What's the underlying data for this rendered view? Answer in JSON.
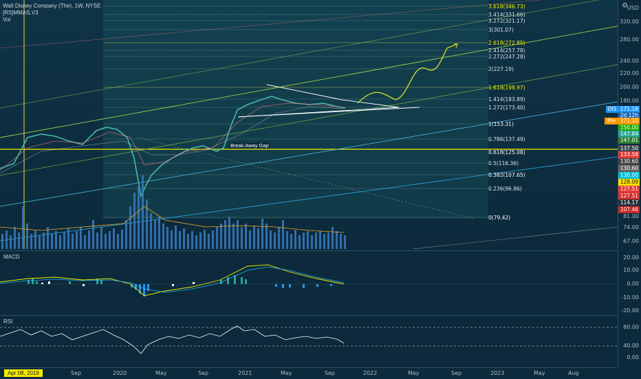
{
  "legend": {
    "title": "Walt Disney Company (The), 1W, NYSE",
    "indicator": "[RS]MMAS.V3",
    "volume": "Vol"
  },
  "currency": "USD",
  "price_axis": [
    "320.00",
    "280.00",
    "240.00",
    "220.00",
    "200.00",
    "180.00",
    "81.00",
    "74.00",
    "67.00"
  ],
  "price_tags": [
    {
      "label": "DIS",
      "value": "171.18",
      "color": "#2196f3"
    },
    {
      "label": "",
      "value": "2d 12h",
      "color": "#1565c0"
    },
    {
      "label": "Pre",
      "value": "171.10",
      "color": "#ff9800"
    },
    {
      "label": "",
      "value": "150.00",
      "color": "#1faa00"
    },
    {
      "label": "",
      "value": "147.84",
      "color": "#26a69a"
    },
    {
      "label": "",
      "value": "147.01",
      "color": "#2e7d32"
    },
    {
      "label": "",
      "value": "137.50",
      "color": "#37474f"
    },
    {
      "label": "",
      "value": "133.58",
      "color": "#e53935"
    },
    {
      "label": "",
      "value": "130.60",
      "color": "#424242"
    },
    {
      "label": "",
      "value": "130.60",
      "color": "#616161"
    },
    {
      "label": "",
      "value": "130.00",
      "color": "#00bcd4"
    },
    {
      "label": "",
      "value": "128.09",
      "color": "#f9e000"
    },
    {
      "label": "",
      "value": "127.51",
      "color": "#e53935"
    },
    {
      "label": "",
      "value": "127.51",
      "color": "#d32f2f"
    },
    {
      "label": "",
      "value": "114.17",
      "color": "#263238"
    },
    {
      "label": "",
      "value": "107.46",
      "color": "#c62828"
    }
  ],
  "fib_levels": [
    {
      "text": "3.618(346.73)",
      "style": "gold"
    },
    {
      "text": "3.414(331.66)",
      "style": "normal"
    },
    {
      "text": "3.272(321.17)",
      "style": "normal"
    },
    {
      "text": "3(301.07)",
      "style": "normal"
    },
    {
      "text": "2.618(272.85)",
      "style": "gold"
    },
    {
      "text": "2.414(257.78)",
      "style": "normal"
    },
    {
      "text": "2.272(247.28)",
      "style": "normal"
    },
    {
      "text": "2(227.19)",
      "style": "normal"
    },
    {
      "text": "1.618(198.97)",
      "style": "gold"
    },
    {
      "text": "1.414(183.89)",
      "style": "normal"
    },
    {
      "text": "1.272(173.40)",
      "style": "normal"
    },
    {
      "text": "1(153.31)",
      "style": "white"
    },
    {
      "text": "0.786(137.49)",
      "style": "normal"
    },
    {
      "text": "0.618(125.08)",
      "style": "white"
    },
    {
      "text": "0.5(116.36)",
      "style": "normal"
    },
    {
      "text": "0.382(107.65)",
      "style": "white"
    },
    {
      "text": "0.236(96.86)",
      "style": "normal"
    },
    {
      "text": "0(79.42)",
      "style": "white"
    }
  ],
  "annotation": "Break Away Gap",
  "macd": {
    "title": "MACD",
    "axis": [
      "20.00",
      "10.00",
      "0.00",
      "-10.00",
      "-20.00"
    ]
  },
  "rsi": {
    "title": "RSI",
    "axis": [
      "80.00",
      "40.00",
      "0.00"
    ]
  },
  "time_axis": {
    "badge": "Apr 08, 2019",
    "labels": [
      "Sep",
      "2020",
      "May",
      "Sep",
      "2021",
      "May",
      "Sep",
      "2022",
      "May",
      "Sep",
      "2023",
      "May",
      "Aug"
    ]
  }
}
